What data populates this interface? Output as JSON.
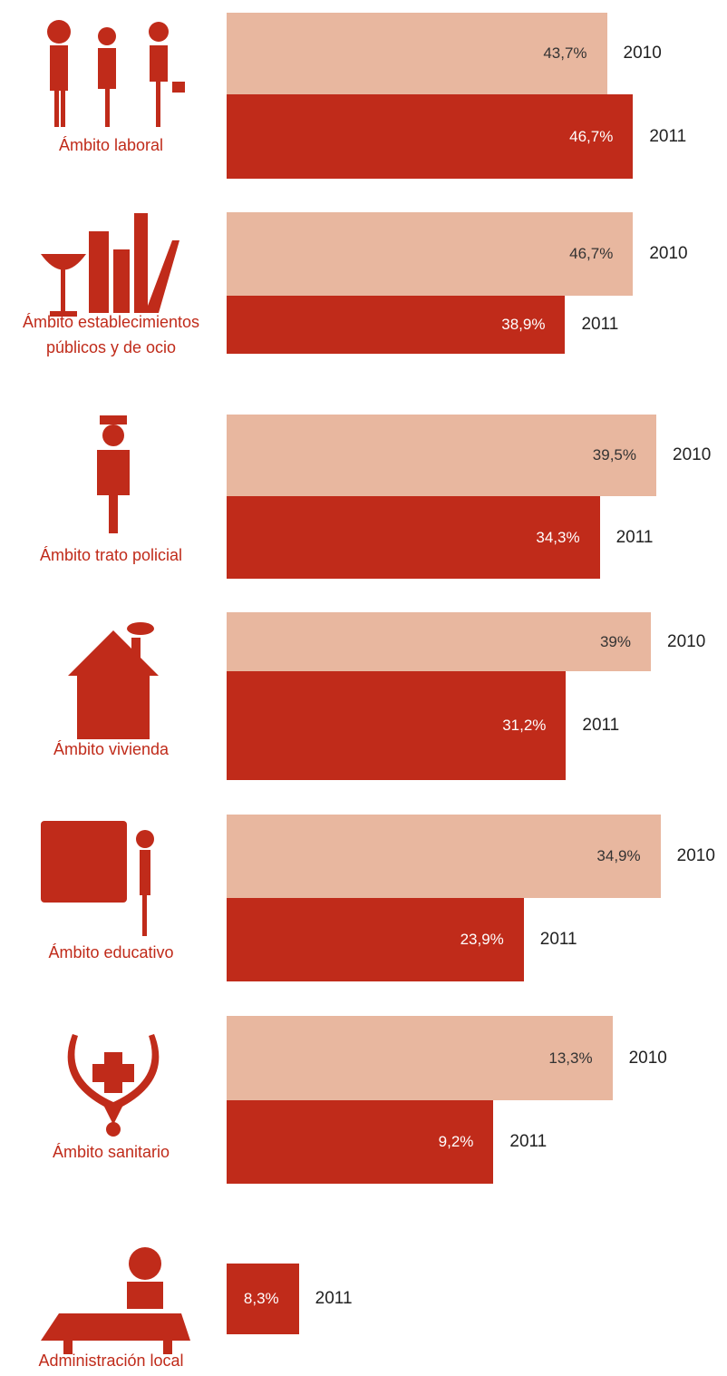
{
  "chart_data": [
    {
      "type": "bar",
      "title": "Ámbito laboral",
      "categories": [
        "2010",
        "2011"
      ],
      "values": [
        43.7,
        46.7
      ],
      "value_labels": [
        "43,7%",
        "46,7%"
      ],
      "colors": [
        "#e8b79f",
        "#c02b1a"
      ],
      "xlim": [
        0,
        50
      ]
    },
    {
      "type": "bar",
      "title": "Ámbito establecimientos públicos y de ocio",
      "categories": [
        "2010",
        "2011"
      ],
      "values": [
        46.7,
        38.9
      ],
      "value_labels": [
        "46,7%",
        "38,9%"
      ],
      "colors": [
        "#e8b79f",
        "#c02b1a"
      ],
      "xlim": [
        0,
        50
      ]
    },
    {
      "type": "bar",
      "title": "Ámbito trato policial",
      "categories": [
        "2010",
        "2011"
      ],
      "values": [
        39.5,
        34.3
      ],
      "value_labels": [
        "39,5%",
        "34,3%"
      ],
      "colors": [
        "#e8b79f",
        "#c02b1a"
      ],
      "xlim": [
        0,
        40
      ]
    },
    {
      "type": "bar",
      "title": "Ámbito vivienda",
      "categories": [
        "2010",
        "2011"
      ],
      "values": [
        39,
        31.2
      ],
      "value_labels": [
        "39%",
        "31,2%"
      ],
      "colors": [
        "#e8b79f",
        "#c02b1a"
      ],
      "xlim": [
        0,
        40
      ]
    },
    {
      "type": "bar",
      "title": "Ámbito educativo",
      "categories": [
        "2010",
        "2011"
      ],
      "values": [
        34.9,
        23.9
      ],
      "value_labels": [
        "34,9%",
        "23,9%"
      ],
      "colors": [
        "#e8b79f",
        "#c02b1a"
      ],
      "xlim": [
        0,
        35
      ]
    },
    {
      "type": "bar",
      "title": "Ámbito sanitario",
      "categories": [
        "2010",
        "2011"
      ],
      "values": [
        13.3,
        9.2
      ],
      "value_labels": [
        "13,3%",
        "9,2%"
      ],
      "colors": [
        "#e8b79f",
        "#c02b1a"
      ],
      "xlim": [
        0,
        15
      ]
    },
    {
      "type": "bar",
      "title": "Administración local",
      "categories": [
        "2011"
      ],
      "values": [
        8.3
      ],
      "value_labels": [
        "8,3%"
      ],
      "colors": [
        "#c02b1a"
      ],
      "xlim": [
        0,
        50
      ]
    }
  ]
}
